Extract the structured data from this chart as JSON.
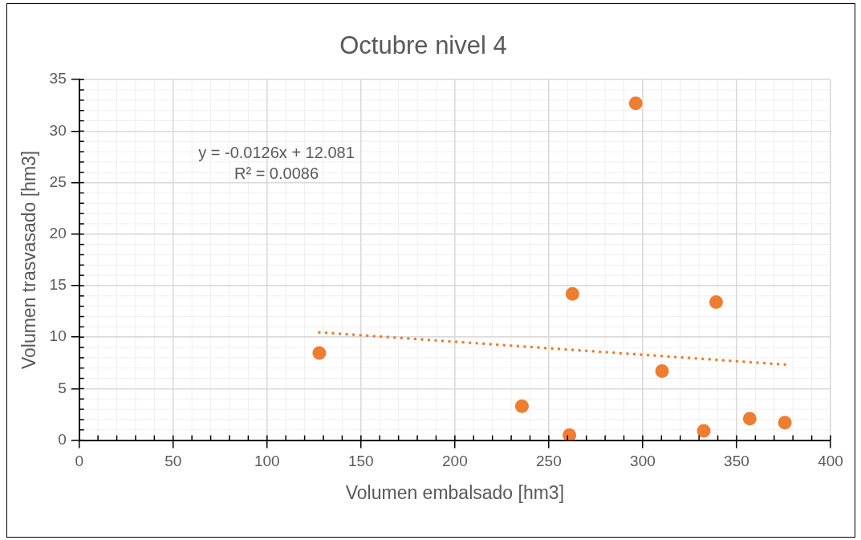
{
  "chart_data": {
    "type": "scatter",
    "title": "Octubre nivel 4",
    "xlabel": "Volumen embalsado [hm3]",
    "ylabel": "Volumen trasvasado [hm3]",
    "x": [
      127.8,
      235.7,
      261,
      262.6,
      296.3,
      310.3,
      332.5,
      339.1,
      357,
      375.7
    ],
    "series": [
      {
        "color": "#ed7d31",
        "values": [
          8.45,
          3.3,
          0.5,
          14.2,
          32.7,
          6.7,
          0.9,
          13.4,
          2.1,
          1.7
        ],
        "marker": "circle"
      },
      {
        "type": "line",
        "color": "#ed7d31",
        "x": [
          127.8,
          375.7
        ],
        "values": [
          10.47,
          7.34
        ],
        "line_style": "dotted",
        "marker": "none"
      }
    ],
    "annotations": [
      "y = -0.0126x + 12.081",
      "R² = 0.0086"
    ],
    "xlim": [
      0,
      400
    ],
    "xticks": [
      0,
      50,
      100,
      150,
      200,
      250,
      300,
      350,
      400
    ],
    "ylim": [
      0,
      35
    ],
    "yticks": [
      0,
      5,
      10,
      15,
      20,
      25,
      30,
      35
    ],
    "grid": true,
    "legend": false
  }
}
